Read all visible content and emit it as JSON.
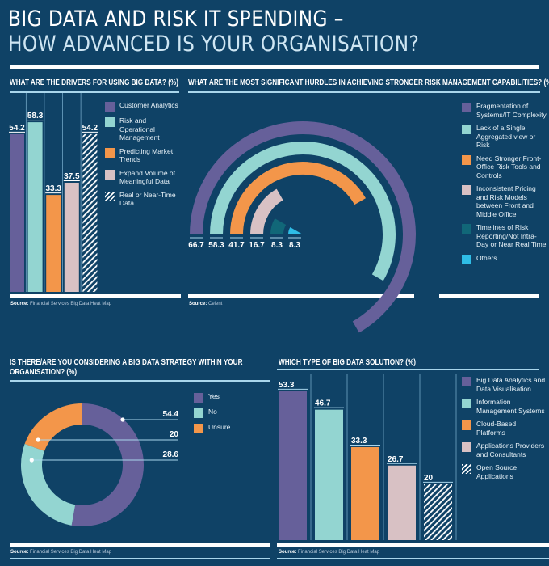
{
  "header": {
    "title_line1": "BIG DATA AND RISK IT SPENDING –",
    "title_line2": "HOW ADVANCED IS YOUR ORGANISATION?"
  },
  "colors": {
    "background": "#0f4266",
    "purple": "#66609a",
    "teal": "#93d5d1",
    "orange": "#f3964a",
    "pink": "#d8c1c4",
    "dark_teal": "#116778",
    "cyan": "#2fbde6"
  },
  "source_label": "Source:",
  "chart_data": [
    {
      "id": "drivers",
      "type": "bar",
      "title": "WHAT ARE THE DRIVERS FOR USING BIG DATA? (%)",
      "categories": [
        "Customer Analytics",
        "Risk and Operational Management",
        "Predicting Market Trends",
        "Expand Volume of Meaningful Data",
        "Real or Near-Time Data"
      ],
      "values": [
        54.2,
        58.3,
        33.3,
        37.5,
        54.2
      ],
      "value_labels": [
        "54.2",
        "58.3",
        "33.3",
        "37.5",
        "54.2"
      ],
      "series_colors": [
        "#66609a",
        "#93d5d1",
        "#f3964a",
        "#d8c1c4",
        "hatch"
      ],
      "ylim": [
        0,
        60
      ],
      "legend_position": "right",
      "source": "Financial Services Big Data Heat Map"
    },
    {
      "id": "hurdles",
      "type": "radial-bar",
      "title": "WHAT ARE THE MOST SIGNIFICANT HURDLES IN ACHIEVING STRONGER RISK MANAGEMENT CAPABILITIES? (%)",
      "categories": [
        "Fragmentation of Systems/IT Complexity",
        "Lack of a Single Aggregated view or Risk",
        "Need Stronger Front-Office Risk Tools and Controls",
        "Inconsistent Pricing and Risk Models between Front and Middle Office",
        "Timelines of Risk Reporting/Not Intra-Day or Near Real Time",
        "Others"
      ],
      "values": [
        66.7,
        58.3,
        41.7,
        16.7,
        8.3,
        8.3
      ],
      "value_labels": [
        "66.7",
        "58.3",
        "41.7",
        "16.7",
        "8.3",
        "8.3"
      ],
      "series_colors": [
        "#66609a",
        "#93d5d1",
        "#f3964a",
        "#d8c1c4",
        "#116778",
        "#2fbde6"
      ],
      "legend_position": "right",
      "source": "Celent"
    },
    {
      "id": "strategy",
      "type": "pie",
      "title": "IS THERE/ARE YOU CONSIDERING A BIG DATA STRATEGY WITHIN YOUR ORGANISATION? (%)",
      "categories": [
        "Yes",
        "No",
        "Unsure"
      ],
      "values": [
        54.4,
        28.6,
        20
      ],
      "value_labels": [
        "54.4",
        "28.6",
        "20"
      ],
      "callout_order": [
        "Yes",
        "Unsure",
        "No"
      ],
      "series_colors": [
        "#66609a",
        "#93d5d1",
        "#f3964a"
      ],
      "legend_position": "right",
      "source": "Financial Services Big Data Heat Map"
    },
    {
      "id": "solution",
      "type": "bar",
      "title": "WHICH TYPE OF BIG DATA SOLUTION? (%)",
      "categories": [
        "Big Data Analytics and Data Visualisation",
        "Information Management Systems",
        "Cloud-Based Platforms",
        "Applications Providers and Consultants",
        "Open Source Applications"
      ],
      "values": [
        53.3,
        46.7,
        33.3,
        26.7,
        20
      ],
      "value_labels": [
        "53.3",
        "46.7",
        "33.3",
        "26.7",
        "20"
      ],
      "series_colors": [
        "#66609a",
        "#93d5d1",
        "#f3964a",
        "#d8c1c4",
        "hatch"
      ],
      "ylim": [
        0,
        55
      ],
      "legend_position": "right",
      "source": "Financial Services Big Data Heat Map"
    }
  ]
}
